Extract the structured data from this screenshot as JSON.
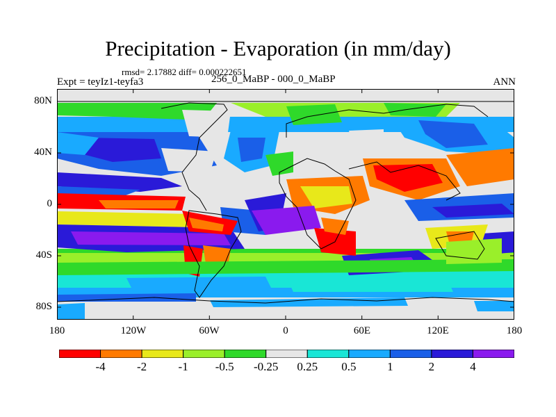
{
  "title": "Precipitation - Evaporation (in mm/day)",
  "stats": "rmsd= 2.17882 diff= 0.000222651",
  "experiment": "Expt = teyIz1-teyfa3",
  "period": "256_0_MaBP - 000_0_MaBP",
  "season": "ANN",
  "latitude_labels": [
    "80N",
    "40N",
    "0",
    "40S",
    "80S"
  ],
  "latitude_values": [
    80,
    40,
    0,
    -40,
    -80
  ],
  "longitude_labels": [
    "180",
    "120W",
    "60W",
    "0",
    "60E",
    "120E",
    "180"
  ],
  "longitude_values": [
    -180,
    -120,
    -60,
    0,
    60,
    120,
    180
  ],
  "colorbar": {
    "labels": [
      "-4",
      "-2",
      "-1",
      "-0.5",
      "-0.25",
      "0.25",
      "0.5",
      "1",
      "2",
      "4"
    ],
    "colors": [
      "#ff0000",
      "#ff7a00",
      "#e8e81a",
      "#9aef2a",
      "#2fd92a",
      "#e6e6e6",
      "#19e6d6",
      "#19aaff",
      "#1a5fe8",
      "#2a1ad8",
      "#8a1aee"
    ]
  }
}
